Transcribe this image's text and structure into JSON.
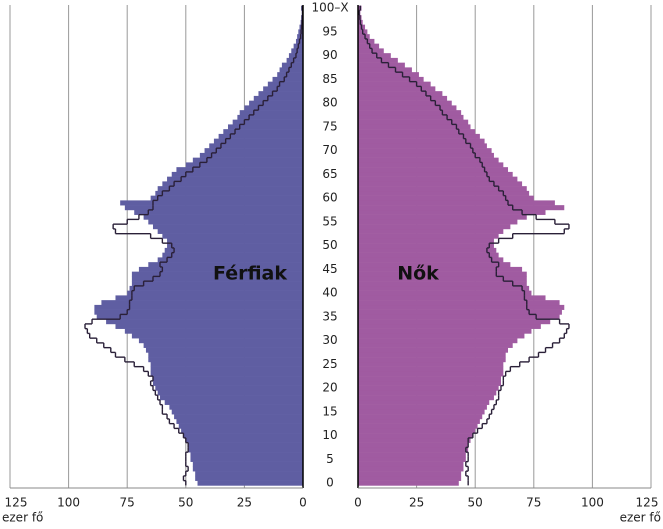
{
  "chart_data": {
    "type": "pyramid",
    "categories": [
      "0",
      null,
      null,
      null,
      null,
      "5",
      null,
      null,
      null,
      null,
      "10",
      null,
      null,
      null,
      null,
      "15",
      null,
      null,
      null,
      null,
      "20",
      null,
      null,
      null,
      null,
      "25",
      null,
      null,
      null,
      null,
      "30",
      null,
      null,
      null,
      null,
      "35",
      null,
      null,
      null,
      null,
      "40",
      null,
      null,
      null,
      null,
      "45",
      null,
      null,
      null,
      null,
      "50",
      null,
      null,
      null,
      null,
      "55",
      null,
      null,
      null,
      null,
      "60",
      null,
      null,
      null,
      null,
      "65",
      null,
      null,
      null,
      null,
      "70",
      null,
      null,
      null,
      null,
      "75",
      null,
      null,
      null,
      null,
      "80",
      null,
      null,
      null,
      null,
      "85",
      null,
      null,
      null,
      null,
      "90",
      null,
      null,
      null,
      null,
      "95",
      null,
      null,
      null,
      null,
      "100–X"
    ],
    "xlim": [
      0,
      125
    ],
    "xticks": [
      0,
      25,
      50,
      75,
      100,
      125
    ],
    "xlabel": "ezer fő",
    "grid": true,
    "outline_color": "#2a2038",
    "series": [
      {
        "name": "Férfiak",
        "side": "left",
        "color": "#5f5ea2",
        "values": [
          45,
          46,
          46,
          47,
          47,
          48,
          48,
          49,
          49,
          50,
          51,
          52,
          53,
          54,
          55,
          56,
          57,
          59,
          61,
          62,
          63,
          64,
          64,
          65,
          65,
          65,
          66,
          66,
          67,
          68,
          70,
          73,
          76,
          80,
          84,
          88,
          89,
          89,
          86,
          80,
          75,
          74,
          73,
          73,
          73,
          70,
          66,
          62,
          60,
          59,
          58,
          58,
          60,
          62,
          64,
          66,
          68,
          72,
          76,
          78,
          65,
          63,
          62,
          60,
          58,
          56,
          54,
          50,
          47,
          44,
          42,
          40,
          38,
          36,
          34,
          32,
          30,
          28,
          27,
          25,
          23,
          21,
          19,
          17,
          15,
          13,
          11,
          10,
          9,
          7,
          6,
          5,
          4,
          3,
          2.5,
          2,
          1.5,
          1,
          0.8,
          0.5,
          0.8
        ],
        "outline_values": [
          50,
          51,
          50,
          49,
          50,
          50,
          50,
          49,
          49,
          50,
          51,
          53,
          55,
          57,
          58,
          60,
          60,
          61,
          62,
          63,
          64,
          65,
          64,
          66,
          68,
          72,
          76,
          80,
          82,
          85,
          88,
          91,
          92,
          93,
          90,
          78,
          75,
          74,
          74,
          73,
          73,
          72,
          68,
          64,
          61,
          60,
          61,
          58,
          56,
          55,
          56,
          60,
          65,
          80,
          81,
          75,
          70,
          66,
          64,
          64,
          62,
          60,
          57,
          55,
          52,
          50,
          47,
          44,
          41,
          39,
          37,
          35,
          33,
          31,
          29,
          27,
          25,
          23,
          21,
          19,
          17,
          15,
          13,
          11,
          10,
          8,
          7,
          6,
          5,
          4,
          3,
          2.5,
          2,
          1.5,
          1,
          0.8,
          0.6,
          0.4,
          0.3,
          0.2,
          0.3
        ]
      },
      {
        "name": "Nők",
        "side": "right",
        "color": "#a05ba1",
        "values": [
          43,
          44,
          44,
          45,
          45,
          46,
          46,
          47,
          47,
          48,
          49,
          50,
          51,
          52,
          53,
          54,
          55,
          56,
          58,
          59,
          60,
          61,
          61,
          62,
          62,
          62,
          63,
          63,
          64,
          66,
          68,
          71,
          74,
          78,
          82,
          86,
          87,
          88,
          86,
          80,
          74,
          73,
          72,
          72,
          72,
          70,
          65,
          62,
          60,
          59,
          58,
          58,
          60,
          62,
          65,
          68,
          72,
          80,
          88,
          84,
          75,
          73,
          72,
          70,
          68,
          66,
          64,
          62,
          60,
          58,
          57,
          55,
          54,
          52,
          50,
          48,
          47,
          45,
          44,
          42,
          40,
          38,
          36,
          33,
          31,
          28,
          26,
          23,
          20,
          17,
          14,
          11,
          9,
          7,
          5,
          4,
          3,
          2,
          1.5,
          1,
          1.5
        ],
        "outline_values": [
          47,
          47,
          46,
          47,
          46,
          47,
          47,
          46,
          47,
          47,
          49,
          51,
          53,
          55,
          56,
          57,
          58,
          59,
          60,
          60,
          61,
          62,
          62,
          63,
          65,
          69,
          73,
          77,
          80,
          83,
          86,
          88,
          89,
          90,
          86,
          76,
          73,
          72,
          72,
          71,
          71,
          70,
          66,
          62,
          59,
          59,
          60,
          57,
          56,
          55,
          56,
          60,
          66,
          88,
          90,
          84,
          76,
          70,
          66,
          64,
          63,
          62,
          60,
          58,
          56,
          55,
          54,
          53,
          52,
          50,
          49,
          48,
          46,
          45,
          43,
          42,
          40,
          38,
          36,
          35,
          33,
          31,
          29,
          27,
          25,
          22,
          19,
          16,
          13,
          10,
          8,
          6,
          5,
          4,
          3,
          2,
          1.5,
          1,
          0.8,
          0.5,
          1
        ]
      }
    ]
  }
}
